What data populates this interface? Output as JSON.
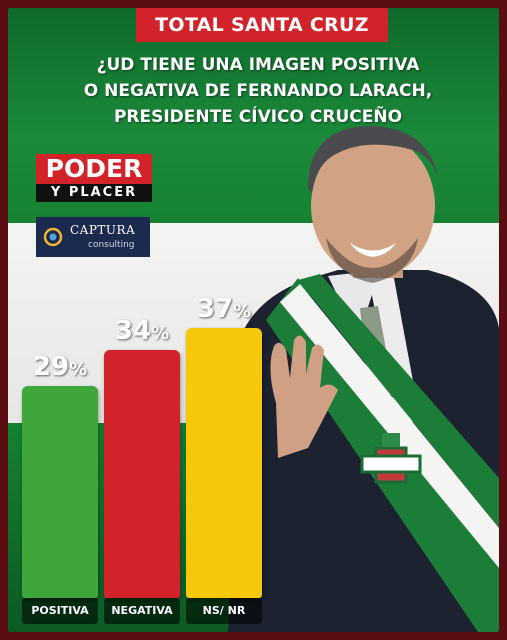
{
  "header": {
    "badge": "TOTAL SANTA CRUZ",
    "question_lines": [
      "¿UD TIENE UNA IMAGEN POSITIVA",
      "O NEGATIVA DE FERNANDO LARACH,",
      "PRESIDENTE CÍVICO CRUCEÑO"
    ]
  },
  "logos": {
    "poder_y_placer_top": "PODER",
    "poder_y_placer_bottom": "Y PLACER",
    "captura_name": "CAPTURA",
    "captura_sub": "consulting"
  },
  "chart_data": {
    "type": "bar",
    "categories": [
      "POSITIVA",
      "NEGATIVA",
      "NS/ NR"
    ],
    "values": [
      29,
      34,
      37
    ],
    "value_labels": [
      "29%",
      "34%",
      "37%"
    ],
    "unit": "%",
    "colors": [
      "#3ea63b",
      "#d3232a",
      "#f5c90a"
    ],
    "title": "",
    "xlabel": "",
    "ylabel": "",
    "ylim": [
      0,
      37
    ],
    "grid": false,
    "legend": "none"
  },
  "colors": {
    "flag_green": "#168232",
    "flag_white": "#f0f0ee",
    "badge_red": "#d3232a",
    "frame": "#5a0d12"
  },
  "person_icon": "portrait-of-man-with-green-white-sash"
}
